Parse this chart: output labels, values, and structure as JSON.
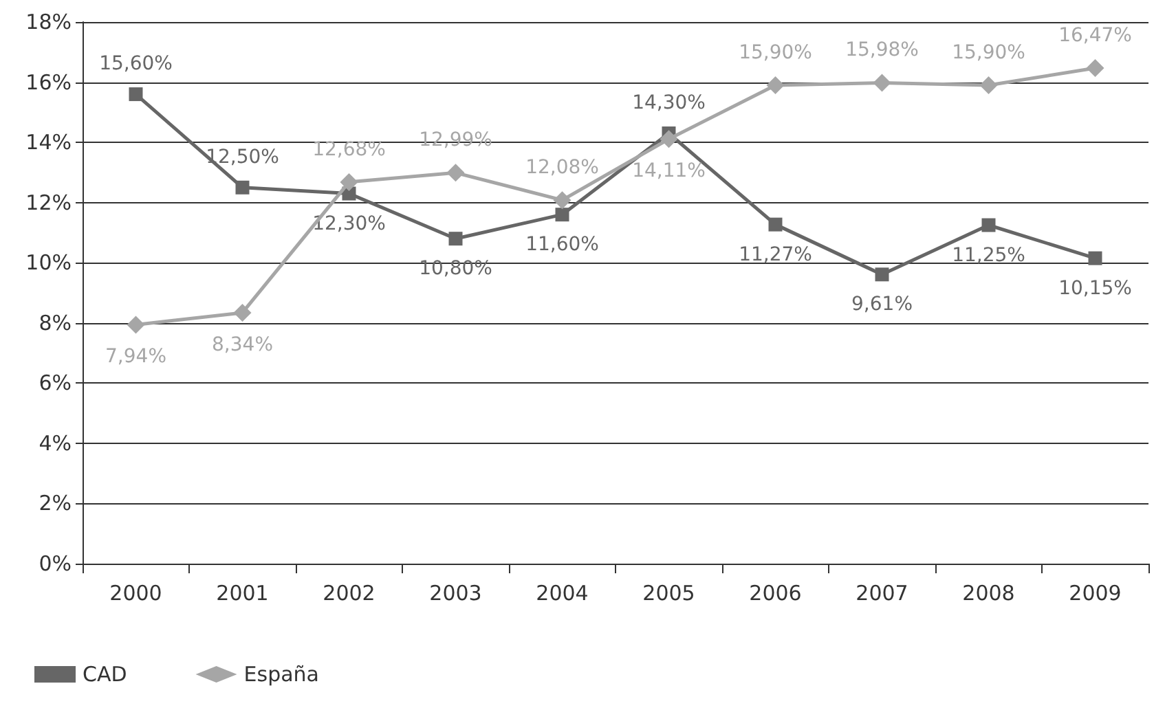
{
  "chart_data": {
    "type": "line",
    "categories": [
      "2000",
      "2001",
      "2002",
      "2003",
      "2004",
      "2005",
      "2006",
      "2007",
      "2008",
      "2009"
    ],
    "series": [
      {
        "name": "CAD",
        "color": "#666666",
        "marker": "square",
        "values": [
          15.6,
          12.5,
          12.3,
          10.8,
          11.6,
          14.3,
          11.27,
          9.61,
          11.25,
          10.15
        ],
        "value_labels": [
          "15,60%",
          "12,50%",
          "12,30%",
          "10,80%",
          "11,60%",
          "14,30%",
          "11,27%",
          "9,61%",
          "11,25%",
          "10,15%"
        ]
      },
      {
        "name": "España",
        "color": "#a6a6a6",
        "marker": "diamond",
        "values": [
          7.94,
          8.34,
          12.68,
          12.99,
          12.08,
          14.11,
          15.9,
          15.98,
          15.9,
          16.47
        ],
        "value_labels": [
          "7,94%",
          "8,34%",
          "12,68%",
          "12,99%",
          "12,08%",
          "14,11%",
          "15,90%",
          "15,98%",
          "15,90%",
          "16,47%"
        ]
      }
    ],
    "ylim": [
      0,
      18
    ],
    "yticks": [
      {
        "value": 0,
        "label": "0%"
      },
      {
        "value": 2,
        "label": "2%"
      },
      {
        "value": 4,
        "label": "4%"
      },
      {
        "value": 6,
        "label": "6%"
      },
      {
        "value": 8,
        "label": "8%"
      },
      {
        "value": 10,
        "label": "10%"
      },
      {
        "value": 12,
        "label": "12%"
      },
      {
        "value": 14,
        "label": "14%"
      },
      {
        "value": 16,
        "label": "16%"
      },
      {
        "value": 18,
        "label": "18%"
      }
    ],
    "grid": "y",
    "legend": "bottom left",
    "line_style": "solid"
  }
}
